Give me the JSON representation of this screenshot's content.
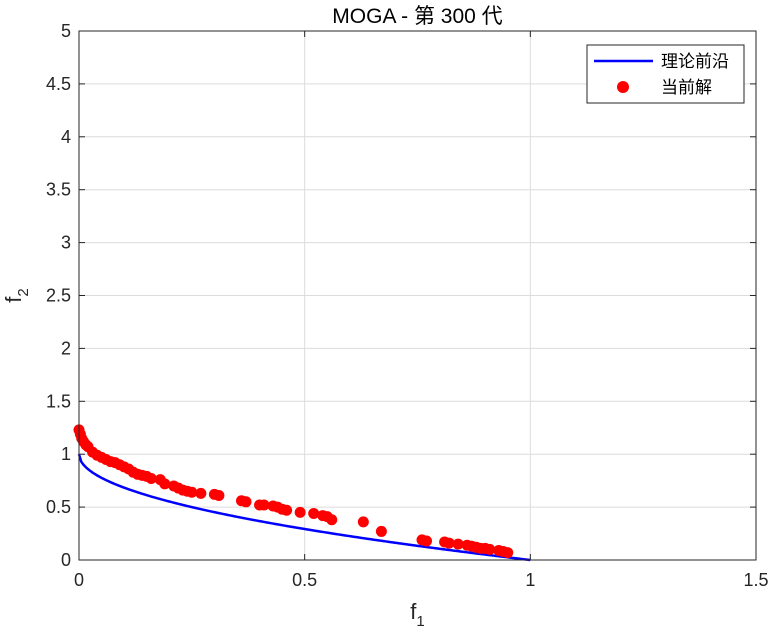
{
  "chart_data": {
    "type": "scatter",
    "title": "MOGA - 第 300 代",
    "xlabel": "f",
    "xlabel_sub": "1",
    "ylabel": "f",
    "ylabel_sub": "2",
    "xlim": [
      0,
      1.5
    ],
    "ylim": [
      0,
      5
    ],
    "xticks": [
      0,
      0.5,
      1,
      1.5
    ],
    "xtick_labels": [
      "0",
      "0.5",
      "1",
      "1.5"
    ],
    "yticks": [
      0,
      0.5,
      1,
      1.5,
      2,
      2.5,
      3,
      3.5,
      4,
      4.5,
      5
    ],
    "ytick_labels": [
      "0",
      "0.5",
      "1",
      "1.5",
      "2",
      "2.5",
      "3",
      "3.5",
      "4",
      "4.5",
      "5"
    ],
    "grid": true,
    "legend_position": "top-right",
    "colors": {
      "front": "#0000ff",
      "points": "#ff0000",
      "grid": "#dcdcdc",
      "axis": "#262626"
    },
    "series": [
      {
        "name": "理论前沿",
        "kind": "line",
        "function": "1 - sqrt(x)",
        "x_range": [
          0,
          1
        ]
      },
      {
        "name": "当前解",
        "kind": "scatter",
        "points": [
          [
            0.0,
            1.23
          ],
          [
            0.003,
            1.19
          ],
          [
            0.006,
            1.15
          ],
          [
            0.01,
            1.12
          ],
          [
            0.015,
            1.09
          ],
          [
            0.02,
            1.07
          ],
          [
            0.03,
            1.02
          ],
          [
            0.04,
            0.99
          ],
          [
            0.05,
            0.97
          ],
          [
            0.06,
            0.95
          ],
          [
            0.07,
            0.93
          ],
          [
            0.08,
            0.92
          ],
          [
            0.09,
            0.9
          ],
          [
            0.1,
            0.88
          ],
          [
            0.11,
            0.86
          ],
          [
            0.12,
            0.83
          ],
          [
            0.13,
            0.81
          ],
          [
            0.14,
            0.8
          ],
          [
            0.15,
            0.79
          ],
          [
            0.16,
            0.77
          ],
          [
            0.18,
            0.76
          ],
          [
            0.19,
            0.72
          ],
          [
            0.21,
            0.7
          ],
          [
            0.22,
            0.68
          ],
          [
            0.23,
            0.66
          ],
          [
            0.24,
            0.65
          ],
          [
            0.25,
            0.64
          ],
          [
            0.27,
            0.63
          ],
          [
            0.3,
            0.62
          ],
          [
            0.31,
            0.61
          ],
          [
            0.36,
            0.56
          ],
          [
            0.37,
            0.55
          ],
          [
            0.4,
            0.52
          ],
          [
            0.41,
            0.52
          ],
          [
            0.43,
            0.51
          ],
          [
            0.44,
            0.5
          ],
          [
            0.45,
            0.48
          ],
          [
            0.46,
            0.47
          ],
          [
            0.49,
            0.45
          ],
          [
            0.52,
            0.44
          ],
          [
            0.54,
            0.42
          ],
          [
            0.55,
            0.41
          ],
          [
            0.56,
            0.38
          ],
          [
            0.63,
            0.36
          ],
          [
            0.67,
            0.27
          ],
          [
            0.76,
            0.19
          ],
          [
            0.77,
            0.18
          ],
          [
            0.81,
            0.17
          ],
          [
            0.82,
            0.16
          ],
          [
            0.84,
            0.15
          ],
          [
            0.86,
            0.14
          ],
          [
            0.87,
            0.13
          ],
          [
            0.88,
            0.12
          ],
          [
            0.89,
            0.11
          ],
          [
            0.9,
            0.11
          ],
          [
            0.91,
            0.1
          ],
          [
            0.93,
            0.09
          ],
          [
            0.94,
            0.08
          ],
          [
            0.95,
            0.07
          ]
        ]
      }
    ]
  }
}
